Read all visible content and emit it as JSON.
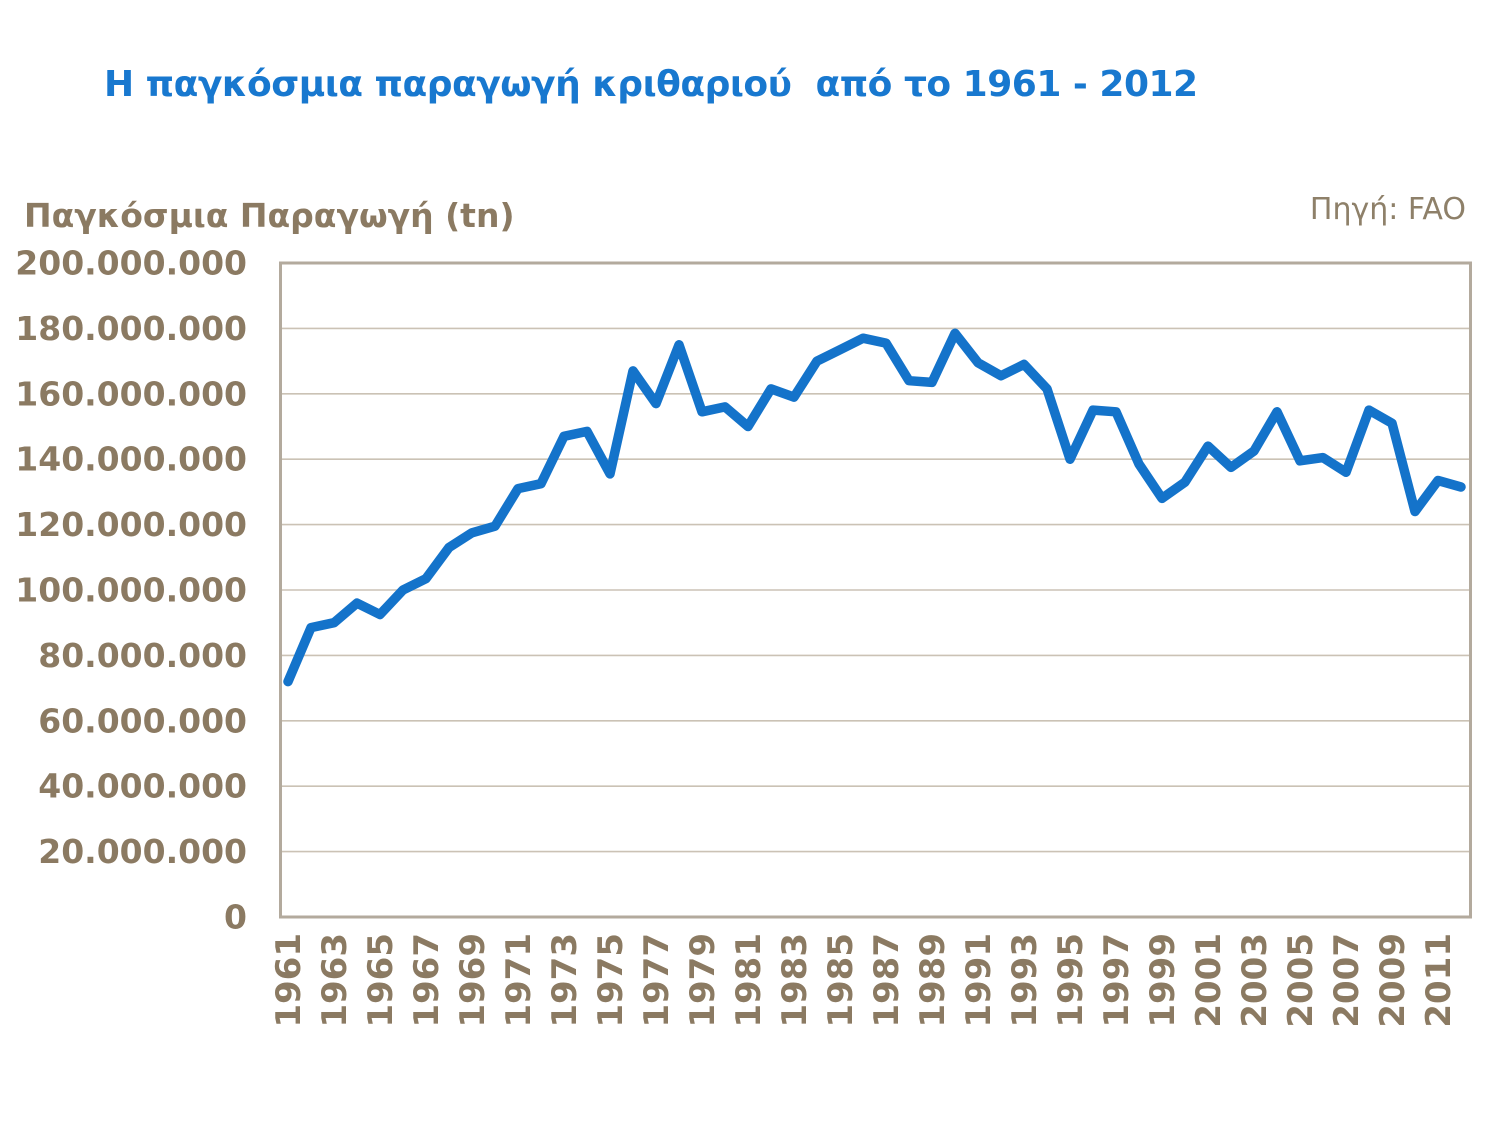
{
  "page": {
    "title": "Η παγκόσμια παραγωγή κριθαριού  από το 1961 - 2012",
    "source_label": "Πηγή: FAO"
  },
  "chart_data": {
    "type": "line",
    "title": "Η παγκόσμια παραγωγή κριθαριού  από το 1961 - 2012",
    "ylabel": "Παγκόσμια Παραγωγή (tn)",
    "xlabel": "",
    "source": "Πηγή: FAO",
    "grid": true,
    "legend_position": "none",
    "ylim": [
      0,
      200000000
    ],
    "ytick_step": 20000000,
    "ytick_labels": [
      "0",
      "20.000.000",
      "40.000.000",
      "60.000.000",
      "80.000.000",
      "100.000.000",
      "120.000.000",
      "140.000.000",
      "160.000.000",
      "180.000.000",
      "200.000.000"
    ],
    "xtick_labels": [
      "1961",
      "1963",
      "1965",
      "1967",
      "1969",
      "1971",
      "1973",
      "1975",
      "1977",
      "1979",
      "1981",
      "1983",
      "1985",
      "1987",
      "1989",
      "1991",
      "1993",
      "1995",
      "1997",
      "1999",
      "2001",
      "2003",
      "2005",
      "2007",
      "2009",
      "2011"
    ],
    "x": [
      1961,
      1962,
      1963,
      1964,
      1965,
      1966,
      1967,
      1968,
      1969,
      1970,
      1971,
      1972,
      1973,
      1974,
      1975,
      1976,
      1977,
      1978,
      1979,
      1980,
      1981,
      1982,
      1983,
      1984,
      1985,
      1986,
      1987,
      1988,
      1989,
      1990,
      1991,
      1992,
      1993,
      1994,
      1995,
      1996,
      1997,
      1998,
      1999,
      2000,
      2001,
      2002,
      2003,
      2004,
      2005,
      2006,
      2007,
      2008,
      2009,
      2010,
      2011,
      2012
    ],
    "series": [
      {
        "name": "Παγκόσμια Παραγωγή (tn)",
        "values": [
          72000000,
          88500000,
          90000000,
          96000000,
          92500000,
          100000000,
          103500000,
          113000000,
          117500000,
          119500000,
          131000000,
          132500000,
          147000000,
          148500000,
          135500000,
          167000000,
          157000000,
          175000000,
          154500000,
          156000000,
          150000000,
          161500000,
          159000000,
          170000000,
          173500000,
          177000000,
          175500000,
          164000000,
          163500000,
          178500000,
          169500000,
          165500000,
          169000000,
          161500000,
          140000000,
          155000000,
          154500000,
          138500000,
          128000000,
          133000000,
          144000000,
          137500000,
          142500000,
          154500000,
          139500000,
          140500000,
          136000000,
          155000000,
          151000000,
          124000000,
          133500000,
          131500000
        ]
      }
    ],
    "colors": {
      "title": "#1878CF",
      "line": "#1473CA",
      "axis_text": "#8B7A62",
      "source_text": "#8E8069",
      "gridline": "#CBC2B5",
      "plot_border": "#B3AA9D",
      "background": "#FFFFFF"
    }
  }
}
